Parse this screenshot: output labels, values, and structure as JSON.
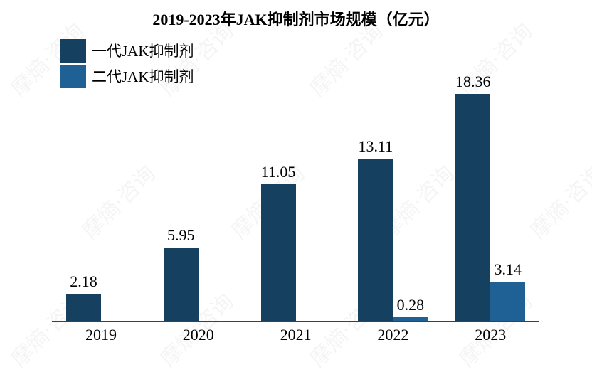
{
  "chart_data": {
    "type": "bar",
    "title": "2019-2023年JAK抑制剂市场规模（亿元）",
    "xlabel": "",
    "ylabel": "",
    "categories": [
      "2019",
      "2020",
      "2021",
      "2022",
      "2023"
    ],
    "series": [
      {
        "name": "一代JAK抑制剂",
        "color": "#16405F",
        "values": [
          2.18,
          5.95,
          11.05,
          13.11,
          18.36
        ]
      },
      {
        "name": "二代JAK抑制剂",
        "color": "#1F6194",
        "values": [
          null,
          null,
          null,
          0.28,
          3.14
        ]
      }
    ],
    "data_labels": {
      "series0": [
        "2.18",
        "5.95",
        "11.05",
        "13.11",
        "18.36"
      ],
      "series1": [
        "",
        "",
        "",
        "0.28",
        "3.14"
      ]
    },
    "ylim": [
      0,
      20
    ],
    "grid": false,
    "y_axis_visible": false,
    "legend_position": "top-left"
  },
  "watermark": "摩熵·咨询"
}
